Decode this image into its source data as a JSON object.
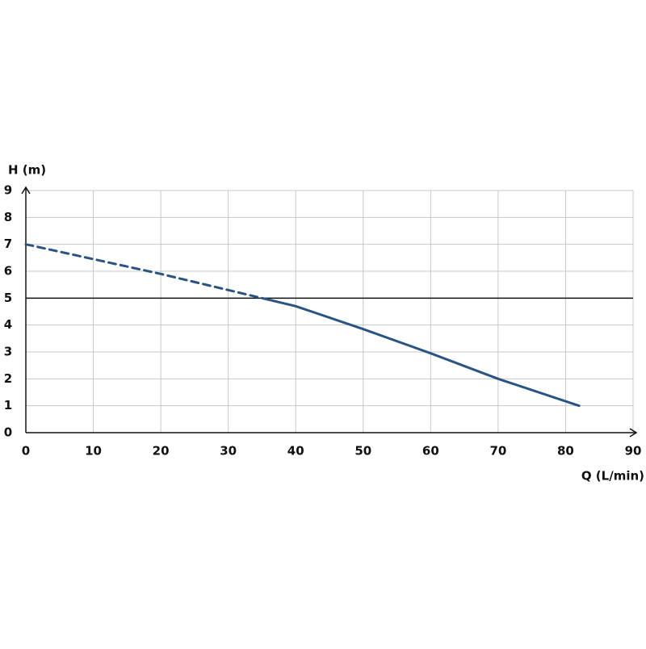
{
  "chart_data": {
    "type": "line",
    "x_label": "Q (L/min)",
    "y_label": "H (m)",
    "xlim": [
      0,
      90
    ],
    "ylim": [
      0,
      9
    ],
    "xticks": [
      0,
      10,
      20,
      30,
      40,
      50,
      60,
      70,
      80,
      90
    ],
    "yticks": [
      0,
      1,
      2,
      3,
      4,
      5,
      6,
      7,
      8,
      9
    ],
    "grid": true,
    "hline": 5,
    "series": [
      {
        "color": "#2a5482",
        "style": "dashed",
        "x": [
          0,
          10,
          20,
          30,
          35
        ],
        "values": [
          7,
          6.45,
          5.9,
          5.3,
          5.0
        ]
      },
      {
        "color": "#2a5482",
        "style": "solid",
        "x": [
          35,
          40,
          50,
          60,
          70,
          82
        ],
        "values": [
          5.0,
          4.7,
          3.85,
          2.95,
          2.0,
          1.0
        ]
      }
    ]
  }
}
